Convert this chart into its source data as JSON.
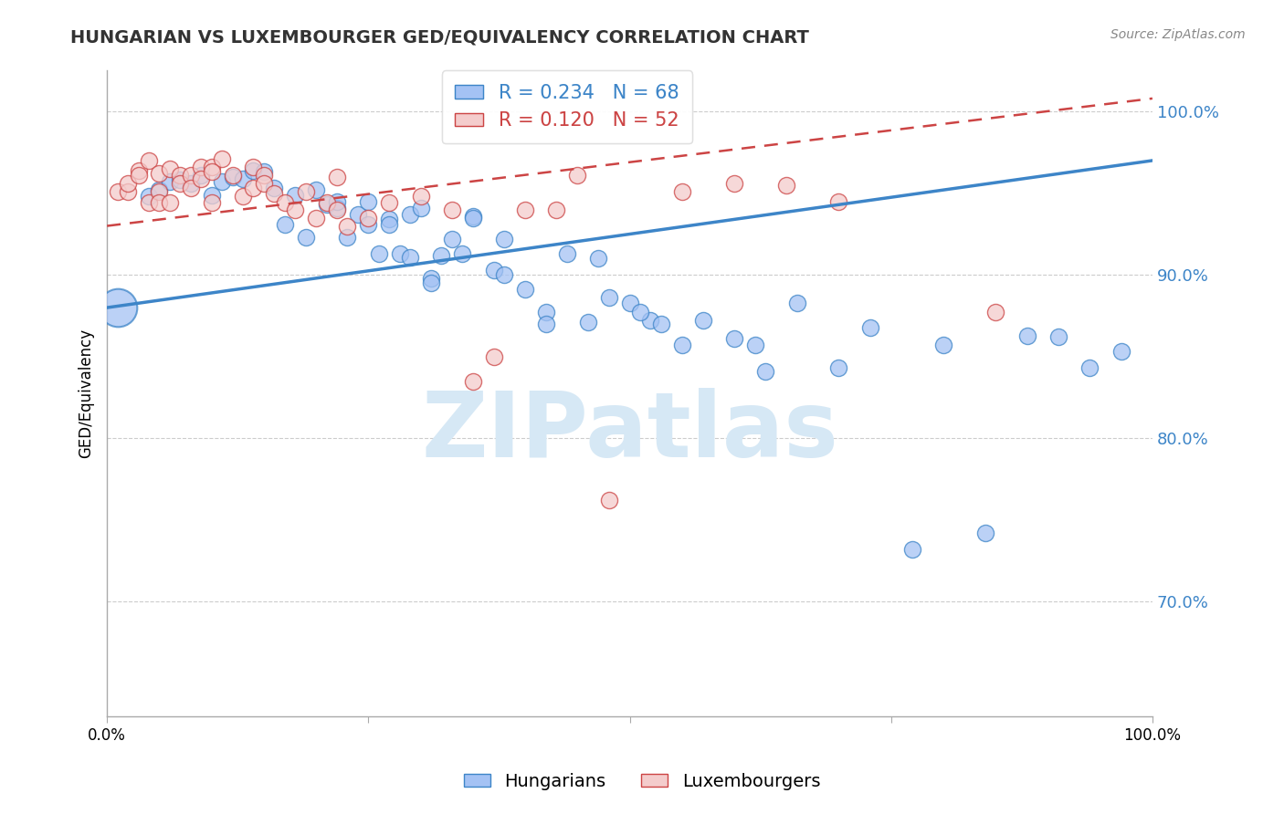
{
  "title": "HUNGARIAN VS LUXEMBOURGER GED/EQUIVALENCY CORRELATION CHART",
  "source": "Source: ZipAtlas.com",
  "ylabel": "GED/Equivalency",
  "xlim": [
    0.0,
    1.0
  ],
  "ylim": [
    0.63,
    1.025
  ],
  "yticks": [
    0.7,
    0.8,
    0.9,
    1.0
  ],
  "ytick_labels": [
    "70.0%",
    "80.0%",
    "90.0%",
    "100.0%"
  ],
  "xticks": [
    0.0,
    0.25,
    0.5,
    0.75,
    1.0
  ],
  "xtick_labels": [
    "0.0%",
    "",
    "",
    "",
    "100.0%"
  ],
  "legend_r1": "R = 0.234",
  "legend_n1": "N = 68",
  "legend_r2": "R = 0.120",
  "legend_n2": "N = 52",
  "blue_color": "#a4c2f4",
  "pink_color": "#f4cccc",
  "line_blue": "#3d85c8",
  "line_pink": "#cc4444",
  "watermark": "ZIPatlas",
  "watermark_color": "#d6e8f5",
  "blue_scatter_x": [
    0.01,
    0.04,
    0.05,
    0.06,
    0.07,
    0.08,
    0.09,
    0.1,
    0.11,
    0.12,
    0.13,
    0.14,
    0.15,
    0.16,
    0.17,
    0.18,
    0.19,
    0.2,
    0.21,
    0.22,
    0.23,
    0.24,
    0.25,
    0.26,
    0.27,
    0.28,
    0.29,
    0.3,
    0.31,
    0.32,
    0.33,
    0.34,
    0.35,
    0.37,
    0.38,
    0.4,
    0.42,
    0.44,
    0.46,
    0.48,
    0.5,
    0.52,
    0.55,
    0.57,
    0.6,
    0.63,
    0.66,
    0.7,
    0.73,
    0.77,
    0.8,
    0.84,
    0.88,
    0.91,
    0.94,
    0.97,
    0.53,
    0.62,
    0.22,
    0.25,
    0.27,
    0.29,
    0.31,
    0.35,
    0.38,
    0.42,
    0.47,
    0.51
  ],
  "blue_scatter_y": [
    0.88,
    0.948,
    0.952,
    0.957,
    0.958,
    0.956,
    0.961,
    0.949,
    0.957,
    0.96,
    0.959,
    0.964,
    0.963,
    0.953,
    0.931,
    0.949,
    0.923,
    0.952,
    0.943,
    0.941,
    0.923,
    0.937,
    0.931,
    0.913,
    0.934,
    0.913,
    0.937,
    0.941,
    0.898,
    0.912,
    0.922,
    0.913,
    0.936,
    0.903,
    0.922,
    0.891,
    0.877,
    0.913,
    0.871,
    0.886,
    0.883,
    0.872,
    0.857,
    0.872,
    0.861,
    0.841,
    0.883,
    0.843,
    0.868,
    0.732,
    0.857,
    0.742,
    0.863,
    0.862,
    0.843,
    0.853,
    0.87,
    0.857,
    0.945,
    0.945,
    0.931,
    0.911,
    0.895,
    0.935,
    0.9,
    0.87,
    0.91,
    0.877
  ],
  "blue_scatter_sizes": [
    600,
    200,
    200,
    200,
    200,
    200,
    200,
    200,
    200,
    200,
    200,
    200,
    200,
    200,
    200,
    200,
    200,
    200,
    200,
    200,
    200,
    200,
    200,
    200,
    200,
    200,
    200,
    200,
    200,
    200,
    200,
    200,
    200,
    200,
    200,
    200,
    200,
    200,
    200,
    200,
    200,
    200,
    200,
    200,
    200,
    200,
    200,
    200,
    200,
    200,
    200,
    200,
    200,
    200,
    200,
    200,
    200,
    200,
    200,
    200,
    200,
    200,
    200,
    200,
    200,
    200,
    200,
    200
  ],
  "pink_scatter_x": [
    0.01,
    0.02,
    0.02,
    0.03,
    0.03,
    0.04,
    0.04,
    0.05,
    0.05,
    0.05,
    0.06,
    0.06,
    0.07,
    0.07,
    0.08,
    0.08,
    0.09,
    0.09,
    0.1,
    0.1,
    0.11,
    0.12,
    0.13,
    0.14,
    0.14,
    0.15,
    0.15,
    0.16,
    0.17,
    0.18,
    0.19,
    0.2,
    0.21,
    0.22,
    0.23,
    0.25,
    0.27,
    0.3,
    0.33,
    0.35,
    0.37,
    0.4,
    0.43,
    0.45,
    0.48,
    0.55,
    0.6,
    0.65,
    0.7,
    0.1,
    0.22,
    0.85
  ],
  "pink_scatter_y": [
    0.951,
    0.951,
    0.956,
    0.964,
    0.961,
    0.944,
    0.97,
    0.951,
    0.944,
    0.962,
    0.965,
    0.944,
    0.961,
    0.956,
    0.961,
    0.953,
    0.966,
    0.959,
    0.944,
    0.966,
    0.971,
    0.961,
    0.948,
    0.966,
    0.953,
    0.961,
    0.956,
    0.95,
    0.944,
    0.94,
    0.951,
    0.935,
    0.944,
    0.94,
    0.93,
    0.935,
    0.944,
    0.948,
    0.94,
    0.835,
    0.85,
    0.94,
    0.94,
    0.961,
    0.762,
    0.951,
    0.956,
    0.955,
    0.945,
    0.963,
    0.96,
    0.877
  ],
  "pink_scatter_sizes": [
    200,
    200,
    200,
    200,
    200,
    200,
    200,
    200,
    200,
    200,
    200,
    200,
    200,
    200,
    200,
    200,
    200,
    200,
    200,
    200,
    200,
    200,
    200,
    200,
    200,
    200,
    200,
    200,
    200,
    200,
    200,
    200,
    200,
    200,
    200,
    200,
    200,
    200,
    200,
    200,
    200,
    200,
    200,
    200,
    200,
    200,
    200,
    200,
    200,
    200,
    200,
    200
  ],
  "blue_line_y_start": 0.88,
  "blue_line_y_end": 0.97,
  "pink_line_y_start": 0.93,
  "pink_line_y_end": 1.008
}
